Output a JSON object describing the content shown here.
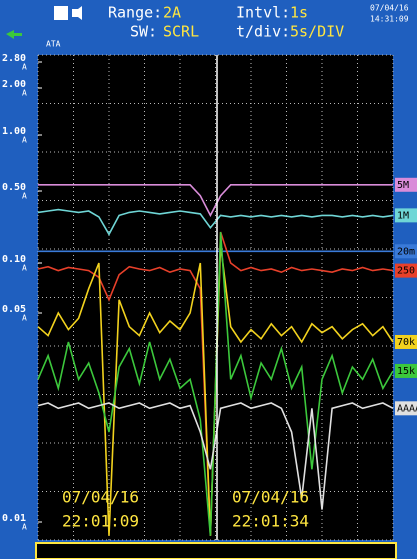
{
  "header": {
    "range_label": "Range:",
    "range_value": "2A",
    "intvl_label": "Intvl:",
    "intvl_value": "1s",
    "sw_label": "SW:",
    "sw_value": "SCRL",
    "tdiv_label": "t/div:",
    "tdiv_value": "5s/DIV",
    "date": "07/04/16",
    "time": "14:31:09",
    "icon_text": "ATA"
  },
  "chart_data": {
    "type": "line",
    "log": true,
    "unit": "A",
    "grid": true,
    "yticks": [
      {
        "value": 2.8,
        "label": "2.80"
      },
      {
        "value": 2,
        "label": "2.00"
      },
      {
        "value": 1,
        "label": "1.00"
      },
      {
        "value": 0.5,
        "label": "0.50"
      },
      {
        "value": 0.1,
        "label": "0.10"
      },
      {
        "value": 0.05,
        "label": "0.05"
      },
      {
        "value": 0.01,
        "label": "0.01"
      }
    ],
    "series": [
      {
        "name": "5M",
        "color": "#d98cd9",
        "values": [
          0.54,
          0.54,
          0.54,
          0.54,
          0.54,
          0.54,
          0.54,
          0.54,
          0.54,
          0.54,
          0.54,
          0.54,
          0.54,
          0.54,
          0.54,
          0.54,
          0.45,
          0.29,
          0.45,
          0.54,
          0.54,
          0.54,
          0.54,
          0.54,
          0.54,
          0.54,
          0.54,
          0.54,
          0.54,
          0.54,
          0.54,
          0.54,
          0.54,
          0.54,
          0.54,
          0.54
        ]
      },
      {
        "name": "1M",
        "color": "#6fd6d6",
        "values": [
          0.31,
          0.32,
          0.33,
          0.32,
          0.31,
          0.32,
          0.28,
          0.19,
          0.29,
          0.31,
          0.32,
          0.31,
          0.3,
          0.31,
          0.32,
          0.31,
          0.3,
          0.22,
          0.29,
          0.28,
          0.29,
          0.28,
          0.29,
          0.28,
          0.29,
          0.28,
          0.29,
          0.28,
          0.29,
          0.29,
          0.28,
          0.29,
          0.28,
          0.29,
          0.28,
          0.29
        ]
      },
      {
        "name": "20m",
        "color": "#3a7ad8",
        "values": [
          0.13,
          0.13,
          0.13,
          0.13,
          0.13,
          0.13,
          0.13,
          0.13,
          0.13,
          0.13,
          0.13,
          0.13,
          0.13,
          0.13,
          0.13,
          0.13,
          0.13,
          0.13,
          0.13,
          0.13,
          0.13,
          0.13,
          0.13,
          0.13,
          0.13,
          0.13,
          0.13,
          0.13,
          0.13,
          0.13,
          0.13,
          0.13,
          0.13,
          0.13,
          0.13,
          0.13
        ]
      },
      {
        "name": "250",
        "color": "#e8402a",
        "values": [
          0.092,
          0.095,
          0.09,
          0.094,
          0.092,
          0.09,
          0.082,
          0.06,
          0.085,
          0.095,
          0.092,
          0.09,
          0.094,
          0.088,
          0.092,
          0.09,
          0.07,
          0.009,
          0.2,
          0.1,
          0.09,
          0.094,
          0.09,
          0.092,
          0.088,
          0.094,
          0.09,
          0.092,
          0.09,
          0.088,
          0.092,
          0.09,
          0.094,
          0.09,
          0.092,
          0.09
        ]
      },
      {
        "name": "70k",
        "color": "#f2d21e",
        "values": [
          0.045,
          0.042,
          0.05,
          0.044,
          0.048,
          0.07,
          0.1,
          0.009,
          0.06,
          0.045,
          0.042,
          0.05,
          0.043,
          0.047,
          0.044,
          0.05,
          0.1,
          0.009,
          0.15,
          0.045,
          0.04,
          0.044,
          0.041,
          0.046,
          0.042,
          0.045,
          0.04,
          0.046,
          0.043,
          0.045,
          0.041,
          0.044,
          0.046,
          0.042,
          0.045,
          0.04
        ]
      },
      {
        "name": "15k",
        "color": "#3cc83c",
        "values": [
          0.03,
          0.036,
          0.028,
          0.04,
          0.03,
          0.034,
          0.027,
          0.02,
          0.033,
          0.038,
          0.029,
          0.04,
          0.03,
          0.035,
          0.028,
          0.03,
          0.022,
          0.009,
          0.2,
          0.03,
          0.036,
          0.026,
          0.034,
          0.03,
          0.038,
          0.028,
          0.033,
          0.015,
          0.03,
          0.036,
          0.027,
          0.033,
          0.03,
          0.035,
          0.028,
          0.032
        ]
      },
      {
        "name": "AAAA",
        "color": "#e0e0e0",
        "values": [
          0.0245,
          0.025,
          0.024,
          0.0245,
          0.025,
          0.024,
          0.0245,
          0.025,
          0.024,
          0.0245,
          0.025,
          0.024,
          0.0245,
          0.025,
          0.024,
          0.0245,
          0.02,
          0.015,
          0.024,
          0.0245,
          0.025,
          0.024,
          0.0245,
          0.025,
          0.024,
          0.02,
          0.012,
          0.024,
          0.011,
          0.024,
          0.0245,
          0.025,
          0.024,
          0.0245,
          0.025,
          0.024
        ]
      }
    ],
    "annotations": [
      {
        "date": "07/04/16",
        "time": "22:01:09"
      },
      {
        "date": "07/04/16",
        "time": "22:01:34"
      }
    ]
  }
}
